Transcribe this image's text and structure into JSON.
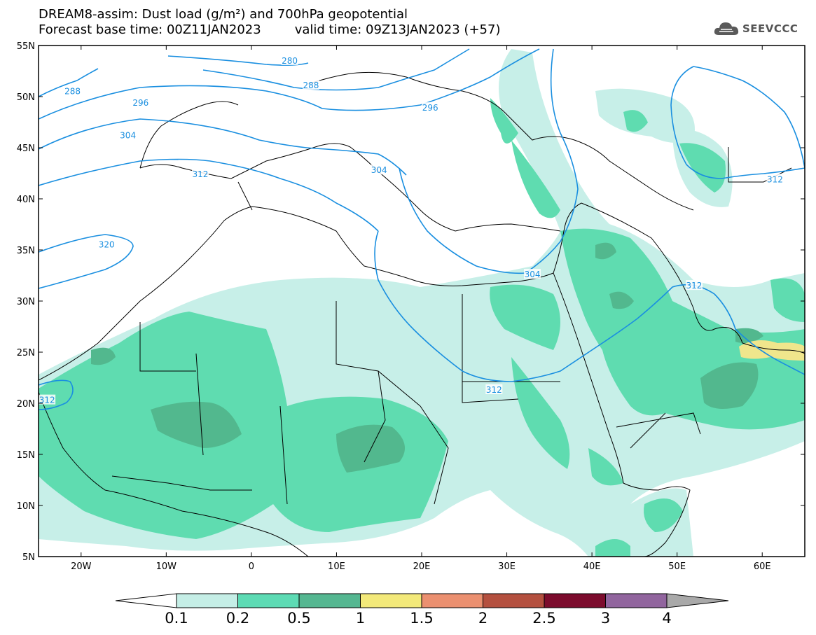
{
  "title": {
    "line1": "DREAM8-assim: Dust load (g/m²) and 700hPa geopotential",
    "line2_left": "Forecast base time: 00Z11JAN2023",
    "line2_right": "valid time: 09Z13JAN2023 (+57)"
  },
  "logo": {
    "text": "SEEVCCC",
    "icon": "cloud-icon"
  },
  "map": {
    "lon_range": [
      -25,
      65
    ],
    "lat_range": [
      5,
      55
    ],
    "lon_ticks": [
      {
        "lon": -20,
        "label": "20W"
      },
      {
        "lon": -10,
        "label": "10W"
      },
      {
        "lon": 0,
        "label": "0"
      },
      {
        "lon": 10,
        "label": "10E"
      },
      {
        "lon": 20,
        "label": "20E"
      },
      {
        "lon": 30,
        "label": "30E"
      },
      {
        "lon": 40,
        "label": "40E"
      },
      {
        "lon": 50,
        "label": "50E"
      },
      {
        "lon": 60,
        "label": "60E"
      }
    ],
    "lat_ticks": [
      {
        "lat": 55,
        "label": "55N"
      },
      {
        "lat": 50,
        "label": "50N"
      },
      {
        "lat": 45,
        "label": "45N"
      },
      {
        "lat": 40,
        "label": "40N"
      },
      {
        "lat": 35,
        "label": "35N"
      },
      {
        "lat": 30,
        "label": "30N"
      },
      {
        "lat": 25,
        "label": "25N"
      },
      {
        "lat": 20,
        "label": "20N"
      },
      {
        "lat": 15,
        "label": "15N"
      },
      {
        "lat": 10,
        "label": "10N"
      },
      {
        "lat": 5,
        "label": "5N"
      }
    ],
    "contour_labels": [
      {
        "text": "288",
        "lon": -21,
        "lat": 50.5
      },
      {
        "text": "296",
        "lon": -13,
        "lat": 49.4
      },
      {
        "text": "304",
        "lon": -14.5,
        "lat": 46.2
      },
      {
        "text": "312",
        "lon": -6,
        "lat": 42.4
      },
      {
        "text": "320",
        "lon": -17,
        "lat": 35.5
      },
      {
        "text": "312",
        "lon": -24,
        "lat": 20.3
      },
      {
        "text": "280",
        "lon": 4.5,
        "lat": 53.5
      },
      {
        "text": "288",
        "lon": 7,
        "lat": 51.1
      },
      {
        "text": "296",
        "lon": 21,
        "lat": 48.9
      },
      {
        "text": "304",
        "lon": 15,
        "lat": 42.8
      },
      {
        "text": "304",
        "lon": 33,
        "lat": 32.6
      },
      {
        "text": "312",
        "lon": 52,
        "lat": 31.5
      },
      {
        "text": "312",
        "lon": 28.5,
        "lat": 21.3
      },
      {
        "text": "312",
        "lon": 61.5,
        "lat": 41.9
      }
    ],
    "dust_colors": [
      "#c7efe8",
      "#5fdcb0",
      "#52b88e",
      "#f0e68c"
    ]
  },
  "colorbar": {
    "levels": [
      "0.1",
      "0.2",
      "0.5",
      "1",
      "1.5",
      "2",
      "2.5",
      "3",
      "4"
    ],
    "colors": [
      "#c5eee6",
      "#5ddbb4",
      "#55b791",
      "#f3e97a",
      "#eb9070",
      "#b4503f",
      "#7c0c2d",
      "#91659e"
    ],
    "under_color": "#ffffff",
    "over_color": "#a9a9a9"
  }
}
